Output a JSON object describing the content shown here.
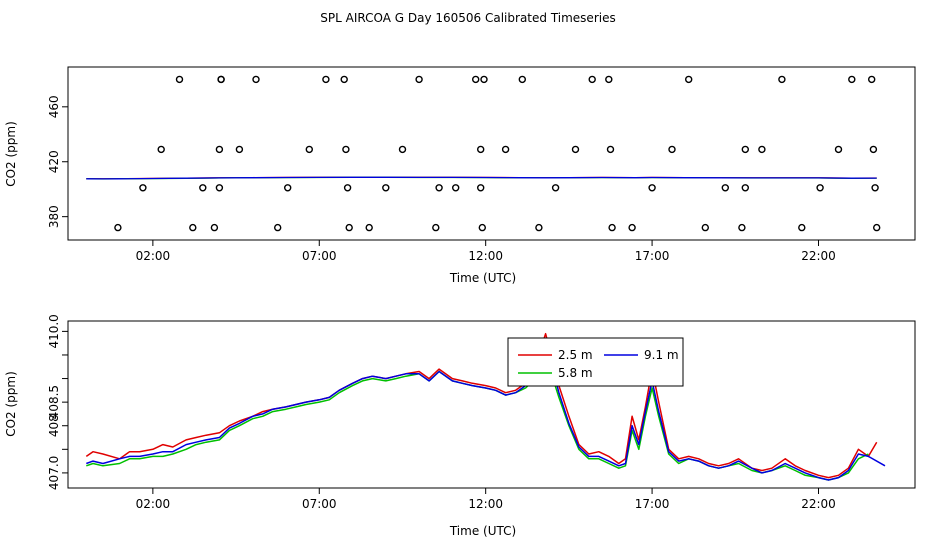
{
  "title": "SPL AIRCOA G  Day 160506  Calibrated Timeseries",
  "colors": {
    "red": "#e00000",
    "green": "#00c000",
    "blue": "#0000e0",
    "black": "#000000"
  },
  "chart_data": [
    {
      "type": "scatter+line",
      "ylabel": "CO2 (ppm)",
      "xlabel": "Time (UTC)",
      "xlim": [
        -0.55,
        24.9
      ],
      "ylim": [
        363,
        489
      ],
      "xticks": [
        2,
        7,
        12,
        17,
        22
      ],
      "xtick_labels": [
        "02:00",
        "07:00",
        "12:00",
        "17:00",
        "22:00"
      ],
      "yticks": [
        380,
        420,
        460
      ],
      "ytick_labels": [
        "380",
        "420",
        "460"
      ],
      "points_hour": [
        0.95,
        1.7,
        2.25,
        2.8,
        3.2,
        3.5,
        3.85,
        4.0,
        4.0,
        4.05,
        4.05,
        4.6,
        5.1,
        5.75,
        6.05,
        6.7,
        7.2,
        7.75,
        7.8,
        7.85,
        7.9,
        8.5,
        9.0,
        9.5,
        10.0,
        10.5,
        10.6,
        11.1,
        11.7,
        11.85,
        11.85,
        11.9,
        11.95,
        12.6,
        13.1,
        13.6,
        14.1,
        14.7,
        15.2,
        15.7,
        15.75,
        15.8,
        16.4,
        17.0,
        17.6,
        18.1,
        18.6,
        19.2,
        19.7,
        19.8,
        19.8,
        20.3,
        20.9,
        21.5,
        22.05,
        22.6,
        23.0,
        23.6,
        23.65,
        23.7,
        23.75
      ],
      "points_co2": [
        372,
        401,
        429,
        480,
        372,
        401,
        372,
        401,
        429,
        480,
        480,
        429,
        480,
        372,
        401,
        429,
        480,
        480,
        429,
        401,
        372,
        372,
        401,
        429,
        480,
        372,
        401,
        401,
        480,
        401,
        429,
        372,
        480,
        429,
        480,
        372,
        401,
        429,
        480,
        480,
        429,
        372,
        372,
        401,
        429,
        480,
        372,
        401,
        372,
        401,
        429,
        429,
        480,
        372,
        401,
        429,
        480,
        480,
        429,
        401,
        372
      ],
      "series_hours": [
        0.0,
        0.5,
        1.0,
        2.0,
        3.0,
        4.0,
        5.0,
        6.0,
        7.0,
        8.0,
        9.0,
        10.0,
        11.0,
        12.0,
        13.0,
        13.8,
        14.5,
        15.5,
        16.5,
        17.0,
        18.0,
        19.0,
        20.0,
        21.0,
        22.0,
        23.0,
        23.75
      ],
      "series_co2": [
        407.6,
        407.5,
        407.6,
        407.8,
        408.0,
        408.2,
        408.4,
        408.5,
        408.6,
        408.7,
        408.7,
        408.6,
        408.6,
        408.5,
        408.4,
        408.3,
        408.4,
        408.5,
        408.4,
        408.5,
        408.4,
        408.3,
        408.2,
        408.2,
        408.2,
        408.0,
        408.1
      ]
    },
    {
      "type": "line",
      "ylabel": "CO2 (ppm)",
      "xlabel": "Time (UTC)",
      "xlim": [
        -0.55,
        24.9
      ],
      "ylim": [
        406.68,
        410.22
      ],
      "xticks": [
        2,
        7,
        12,
        17,
        22
      ],
      "xtick_labels": [
        "02:00",
        "07:00",
        "12:00",
        "17:00",
        "22:00"
      ],
      "yticks": [
        407.0,
        407.5,
        408.0,
        408.5,
        409.0,
        409.5,
        410.0
      ],
      "ytick_labels": [
        "407.0",
        "",
        "408",
        "408.5",
        "",
        "",
        "410.0"
      ],
      "legend": {
        "position": "top-center",
        "items": [
          "2.5 m",
          "5.8 m",
          "9.1 m"
        ]
      },
      "series": [
        {
          "name": "2.5 m",
          "color": "#e00000",
          "x": [
            0.0,
            0.2,
            0.5,
            1.0,
            1.3,
            1.6,
            2.0,
            2.3,
            2.6,
            3.0,
            3.3,
            3.6,
            4.0,
            4.3,
            4.6,
            5.0,
            5.3,
            5.6,
            6.0,
            6.3,
            6.6,
            7.0,
            7.3,
            7.6,
            8.0,
            8.3,
            8.6,
            9.0,
            9.3,
            9.6,
            10.0,
            10.3,
            10.6,
            11.0,
            11.3,
            11.6,
            12.0,
            12.3,
            12.6,
            12.9,
            13.2,
            13.5,
            13.8,
            14.0,
            14.2,
            14.5,
            14.8,
            15.1,
            15.4,
            15.7,
            16.0,
            16.2,
            16.4,
            16.6,
            16.8,
            17.0,
            17.2,
            17.5,
            17.8,
            18.1,
            18.4,
            18.7,
            19.0,
            19.3,
            19.6,
            20.0,
            20.3,
            20.6,
            21.0,
            21.3,
            21.6,
            22.0,
            22.3,
            22.6,
            22.9,
            23.2,
            23.5,
            23.75
          ],
          "y": [
            407.35,
            407.45,
            407.4,
            407.3,
            407.45,
            407.45,
            407.5,
            407.6,
            407.55,
            407.7,
            407.75,
            407.8,
            407.85,
            408.0,
            408.1,
            408.2,
            408.3,
            408.35,
            408.4,
            408.45,
            408.5,
            408.55,
            408.6,
            408.75,
            408.9,
            409.0,
            409.05,
            409.0,
            409.05,
            409.1,
            409.15,
            409.0,
            409.2,
            409.0,
            408.95,
            408.9,
            408.85,
            408.8,
            408.7,
            408.75,
            408.9,
            409.3,
            409.95,
            409.4,
            408.85,
            408.2,
            407.6,
            407.4,
            407.45,
            407.35,
            407.2,
            407.3,
            408.2,
            407.7,
            408.4,
            409.2,
            408.5,
            407.5,
            407.3,
            407.35,
            407.3,
            407.2,
            407.15,
            407.2,
            407.3,
            407.1,
            407.05,
            407.1,
            407.3,
            407.15,
            407.05,
            406.95,
            406.9,
            406.95,
            407.1,
            407.5,
            407.35,
            407.65
          ]
        },
        {
          "name": "5.8 m",
          "color": "#00c000",
          "x": [
            0.0,
            0.2,
            0.5,
            1.0,
            1.3,
            1.6,
            2.0,
            2.3,
            2.6,
            3.0,
            3.3,
            3.6,
            4.0,
            4.3,
            4.6,
            5.0,
            5.3,
            5.6,
            6.0,
            6.3,
            6.6,
            7.0,
            7.3,
            7.6,
            8.0,
            8.3,
            8.6,
            9.0,
            9.3,
            9.6,
            10.0,
            10.3,
            10.6,
            11.0,
            11.3,
            11.6,
            12.0,
            12.3,
            12.6,
            12.9,
            13.2,
            13.5,
            13.8,
            14.0,
            14.2,
            14.5,
            14.8,
            15.1,
            15.4,
            15.7,
            16.0,
            16.2,
            16.4,
            16.6,
            16.8,
            17.0,
            17.2,
            17.5,
            17.8,
            18.1,
            18.4,
            18.7,
            19.0,
            19.3,
            19.6,
            20.0,
            20.3,
            20.6,
            21.0,
            21.3,
            21.6,
            22.0,
            22.3,
            22.6,
            22.9,
            23.2,
            23.5
          ],
          "y": [
            407.15,
            407.2,
            407.15,
            407.2,
            407.3,
            407.3,
            407.35,
            407.35,
            407.4,
            407.5,
            407.6,
            407.65,
            407.7,
            407.9,
            408.0,
            408.15,
            408.2,
            408.3,
            408.35,
            408.4,
            408.45,
            408.5,
            408.55,
            408.7,
            408.85,
            408.95,
            409.0,
            408.95,
            409.0,
            409.05,
            409.1,
            408.95,
            409.15,
            408.95,
            408.9,
            408.85,
            408.8,
            408.75,
            408.65,
            408.7,
            408.8,
            409.0,
            409.5,
            409.05,
            408.6,
            408.0,
            407.5,
            407.3,
            407.3,
            407.2,
            407.1,
            407.15,
            407.9,
            407.5,
            408.2,
            408.8,
            408.2,
            407.4,
            407.2,
            407.3,
            407.25,
            407.15,
            407.1,
            407.15,
            407.2,
            407.05,
            407.0,
            407.05,
            407.15,
            407.05,
            406.95,
            406.9,
            406.85,
            406.9,
            407.0,
            407.3,
            407.4
          ]
        },
        {
          "name": "9.1 m",
          "color": "#0000e0",
          "x": [
            0.0,
            0.2,
            0.5,
            1.0,
            1.3,
            1.6,
            2.0,
            2.3,
            2.6,
            3.0,
            3.3,
            3.6,
            4.0,
            4.3,
            4.6,
            5.0,
            5.3,
            5.6,
            6.0,
            6.3,
            6.6,
            7.0,
            7.3,
            7.6,
            8.0,
            8.3,
            8.6,
            9.0,
            9.3,
            9.6,
            10.0,
            10.3,
            10.6,
            11.0,
            11.3,
            11.6,
            12.0,
            12.3,
            12.6,
            12.9,
            13.2,
            13.5,
            13.8,
            14.0,
            14.2,
            14.5,
            14.8,
            15.1,
            15.4,
            15.7,
            16.0,
            16.2,
            16.4,
            16.6,
            16.8,
            17.0,
            17.2,
            17.5,
            17.8,
            18.1,
            18.4,
            18.7,
            19.0,
            19.3,
            19.6,
            20.0,
            20.3,
            20.6,
            21.0,
            21.3,
            21.6,
            22.0,
            22.3,
            22.6,
            22.9,
            23.2,
            23.5,
            24.0
          ],
          "y": [
            407.2,
            407.25,
            407.2,
            407.3,
            407.35,
            407.35,
            407.4,
            407.45,
            407.45,
            407.6,
            407.65,
            407.7,
            407.75,
            407.95,
            408.05,
            408.2,
            408.25,
            408.35,
            408.4,
            408.45,
            408.5,
            408.55,
            408.6,
            408.75,
            408.9,
            409.0,
            409.05,
            409.0,
            409.05,
            409.1,
            409.1,
            408.95,
            409.15,
            408.95,
            408.9,
            408.85,
            408.8,
            408.75,
            408.65,
            408.7,
            408.85,
            409.15,
            409.75,
            409.25,
            408.7,
            408.05,
            407.55,
            407.35,
            407.35,
            407.25,
            407.15,
            407.2,
            408.0,
            407.6,
            408.3,
            408.95,
            408.3,
            407.45,
            407.25,
            407.3,
            407.25,
            407.15,
            407.1,
            407.15,
            407.25,
            407.1,
            407.0,
            407.05,
            407.2,
            407.1,
            407.0,
            406.9,
            406.85,
            406.9,
            407.05,
            407.4,
            407.35,
            407.15
          ]
        }
      ]
    }
  ]
}
